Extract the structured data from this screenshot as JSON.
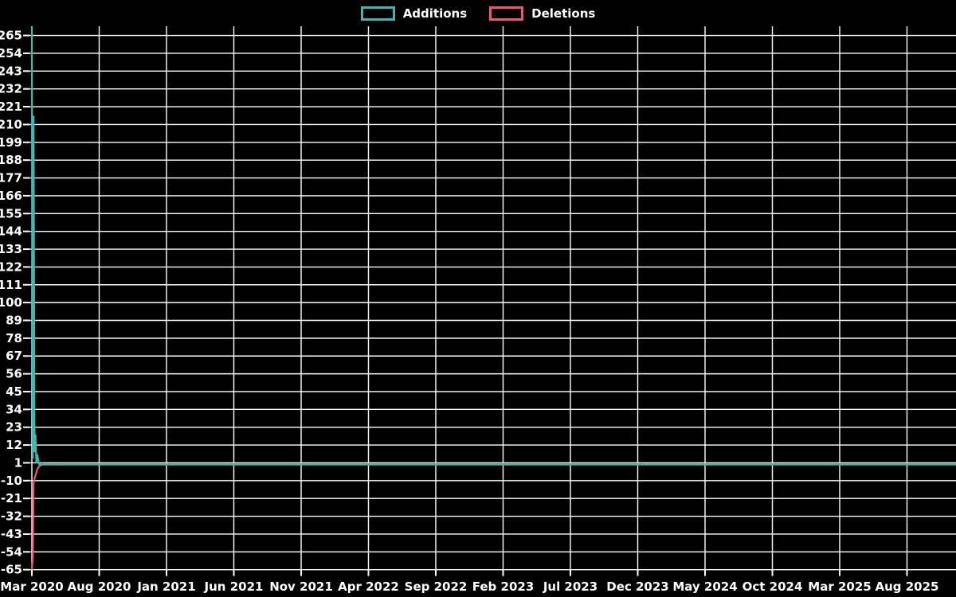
{
  "chart": {
    "background": "#000000",
    "grid_color": "#ffffff",
    "text_color": "#ffffff"
  },
  "legend": {
    "position": "top-center",
    "items": [
      {
        "id": "additions",
        "label": "Additions",
        "color": "#42b7ae"
      },
      {
        "id": "deletions",
        "label": "Deletions",
        "color": "#ee5571"
      }
    ]
  },
  "chart_data": {
    "type": "line",
    "title": "",
    "xlabel": "",
    "ylabel": "",
    "grid": true,
    "legend_position": "top-center",
    "x_axis": {
      "tick_labels": [
        "Mar 2020",
        "Aug 2020",
        "Jan 2021",
        "Jun 2021",
        "Nov 2021",
        "Apr 2022",
        "Sep 2022",
        "Feb 2023",
        "Jul 2023",
        "Dec 2023",
        "May 2024",
        "Oct 2024",
        "Mar 2025",
        "Aug 2025"
      ],
      "tick_month_offsets": [
        0,
        5,
        10,
        15,
        20,
        25,
        30,
        35,
        40,
        45,
        50,
        55,
        60,
        65
      ],
      "range_months": [
        0,
        68.7
      ]
    },
    "y_axis": {
      "tick_values": [
        265,
        254,
        243,
        232,
        221,
        210,
        199,
        188,
        177,
        166,
        155,
        144,
        133,
        122,
        111,
        100,
        89,
        78,
        67,
        56,
        45,
        34,
        23,
        12,
        1,
        -10,
        -21,
        -32,
        -43,
        -54,
        -65
      ],
      "min": -65,
      "max": 271,
      "tick_step": 11
    },
    "series": [
      {
        "name": "Additions",
        "color": "#42b7ae",
        "points": [
          {
            "date": "2020-03-01",
            "month_offset": 0.0,
            "value": 270
          },
          {
            "date": "2020-03-03",
            "month_offset": 0.07,
            "value": 4
          },
          {
            "date": "2020-03-05",
            "month_offset": 0.13,
            "value": 215
          },
          {
            "date": "2020-03-07",
            "month_offset": 0.2,
            "value": 8
          },
          {
            "date": "2020-03-09",
            "month_offset": 0.27,
            "value": 18
          },
          {
            "date": "2020-03-11",
            "month_offset": 0.33,
            "value": 1
          },
          {
            "date": "2020-03-13",
            "month_offset": 0.4,
            "value": 6
          },
          {
            "date": "2020-03-17",
            "month_offset": 0.55,
            "value": 0
          },
          {
            "date": "2025-11-20",
            "month_offset": 68.7,
            "value": 0
          }
        ]
      },
      {
        "name": "Deletions",
        "color": "#ee5571",
        "points": [
          {
            "date": "2020-03-01",
            "month_offset": 0.0,
            "value": -65
          },
          {
            "date": "2020-03-03",
            "month_offset": 0.07,
            "value": -58
          },
          {
            "date": "2020-03-05",
            "month_offset": 0.13,
            "value": -12
          },
          {
            "date": "2020-03-07",
            "month_offset": 0.22,
            "value": -8
          },
          {
            "date": "2020-03-10",
            "month_offset": 0.3,
            "value": -6
          },
          {
            "date": "2020-03-13",
            "month_offset": 0.4,
            "value": -3
          },
          {
            "date": "2020-03-17",
            "month_offset": 0.55,
            "value": -1
          },
          {
            "date": "2020-03-25",
            "month_offset": 0.8,
            "value": 0
          },
          {
            "date": "2025-11-20",
            "month_offset": 68.7,
            "value": 0
          }
        ]
      }
    ]
  }
}
